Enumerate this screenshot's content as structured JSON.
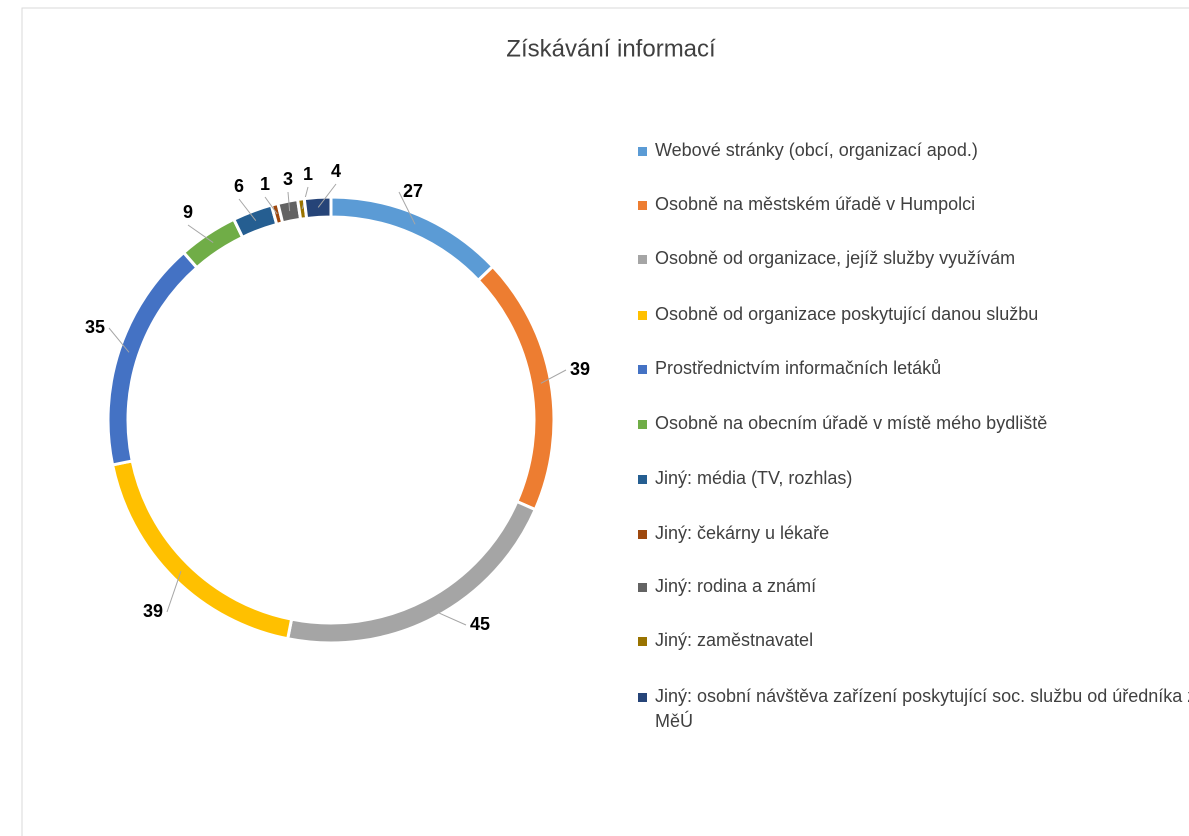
{
  "chart_data": {
    "type": "donut",
    "title": "Získávání informací",
    "categories": [
      "Webové stránky (obcí, organizací apod.)",
      "Osobně na městském úřadě v Humpolci",
      "Osobně od organizace, jejíž služby využívám",
      "Osobně od organizace poskytující danou službu",
      "Prostřednictvím informačních letáků",
      "Osobně na obecním úřadě v místě mého bydliště",
      "Jiný: média (TV, rozhlas)",
      "Jiný: čekárny u lékaře",
      "Jiný: rodina a známí",
      "Jiný: zaměstnavatel",
      "Jiný: osobní návštěva zařízení poskytující soc. službu od úředníka z MěÚ"
    ],
    "values": [
      27,
      39,
      45,
      39,
      35,
      9,
      6,
      1,
      3,
      1,
      4
    ],
    "colors": [
      "#5b9bd5",
      "#ed7d31",
      "#a5a5a5",
      "#ffc000",
      "#4472c4",
      "#70ad47",
      "#255e91",
      "#9e480e",
      "#636363",
      "#997300",
      "#264478"
    ],
    "legend": "right"
  }
}
